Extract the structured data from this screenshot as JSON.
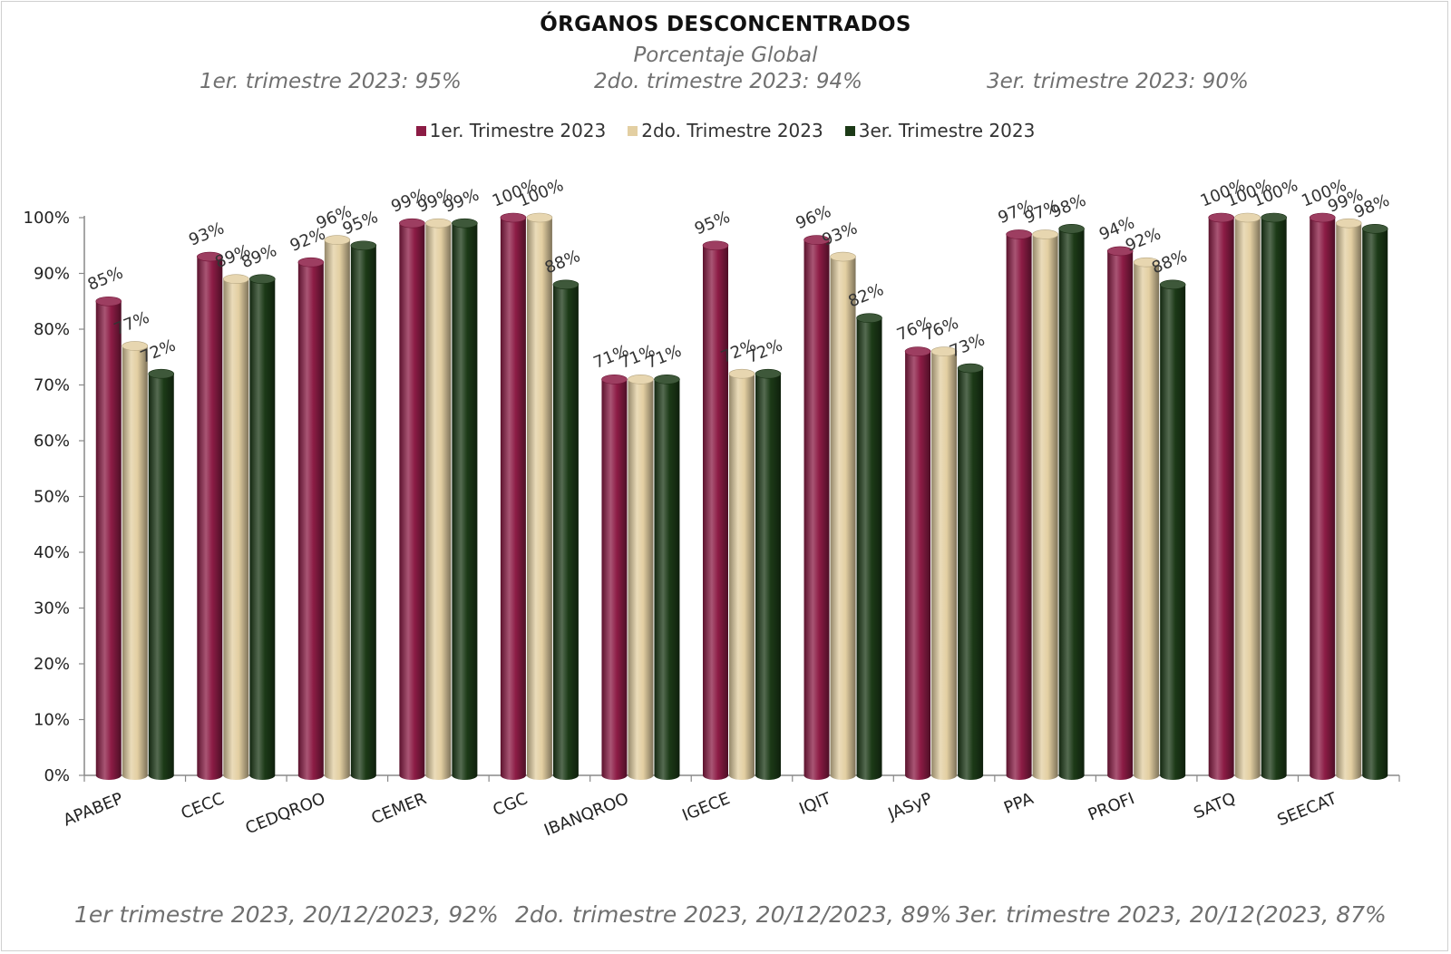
{
  "header": {
    "title": "ÓRGANOS DESCONCENTRADOS",
    "subtitle": "Porcentaje Global",
    "summary": [
      "1er. trimestre 2023: 95%",
      "2do. trimestre 2023: 94%",
      "3er. trimestre 2023:  90%"
    ]
  },
  "footer": [
    "1er trimestre  2023,  20/12/2023, 92%",
    "2do. trimestre 2023, 20/12/2023, 89%",
    "3er. trimestre 2023, 20/12(2023,  87%"
  ],
  "chart_data": {
    "type": "bar",
    "categories": [
      "APABEP",
      "CECC",
      "CEDQROO",
      "CEMER",
      "CGC",
      "IBANQROO",
      "IGECE",
      "IQIT",
      "JASyP",
      "PPA",
      "PROFI",
      "SATQ",
      "SEECAT"
    ],
    "series": [
      {
        "name": "1er. Trimestre 2023",
        "color": "#8c1c45",
        "values": [
          85,
          93,
          92,
          99,
          100,
          71,
          95,
          96,
          76,
          97,
          94,
          100,
          100
        ],
        "labels": [
          "85%",
          "93%",
          "92%",
          "99%",
          "100%",
          "71%",
          "95%",
          "96%",
          "76%",
          "97%",
          "94%",
          "100%",
          "100%"
        ]
      },
      {
        "name": "2do. Trimestre 2023",
        "color": "#e3cfa2",
        "values": [
          77,
          89,
          96,
          99,
          100,
          71,
          72,
          93,
          76,
          97,
          92,
          100,
          99
        ],
        "labels": [
          "77%",
          "89%",
          "96%",
          "99%",
          "100%",
          "71%",
          "72%",
          "93%",
          "76%",
          "97%",
          "92%",
          "100%",
          "99%"
        ]
      },
      {
        "name": "3er. Trimestre 2023",
        "color": "#1c3a17",
        "values": [
          72,
          89,
          95,
          99,
          88,
          71,
          72,
          82,
          73,
          98,
          88,
          100,
          98
        ],
        "labels": [
          "72%",
          "89%",
          "95%",
          "99%",
          "88%",
          "71%",
          "72%",
          "82%",
          "73%",
          "98%",
          "88%",
          "100%",
          "98%"
        ]
      }
    ],
    "ylim": [
      0,
      100
    ],
    "yticks": [
      "0%",
      "10%",
      "20%",
      "30%",
      "40%",
      "50%",
      "60%",
      "70%",
      "80%",
      "90%",
      "100%"
    ],
    "legend_position": "top",
    "grid": false
  }
}
